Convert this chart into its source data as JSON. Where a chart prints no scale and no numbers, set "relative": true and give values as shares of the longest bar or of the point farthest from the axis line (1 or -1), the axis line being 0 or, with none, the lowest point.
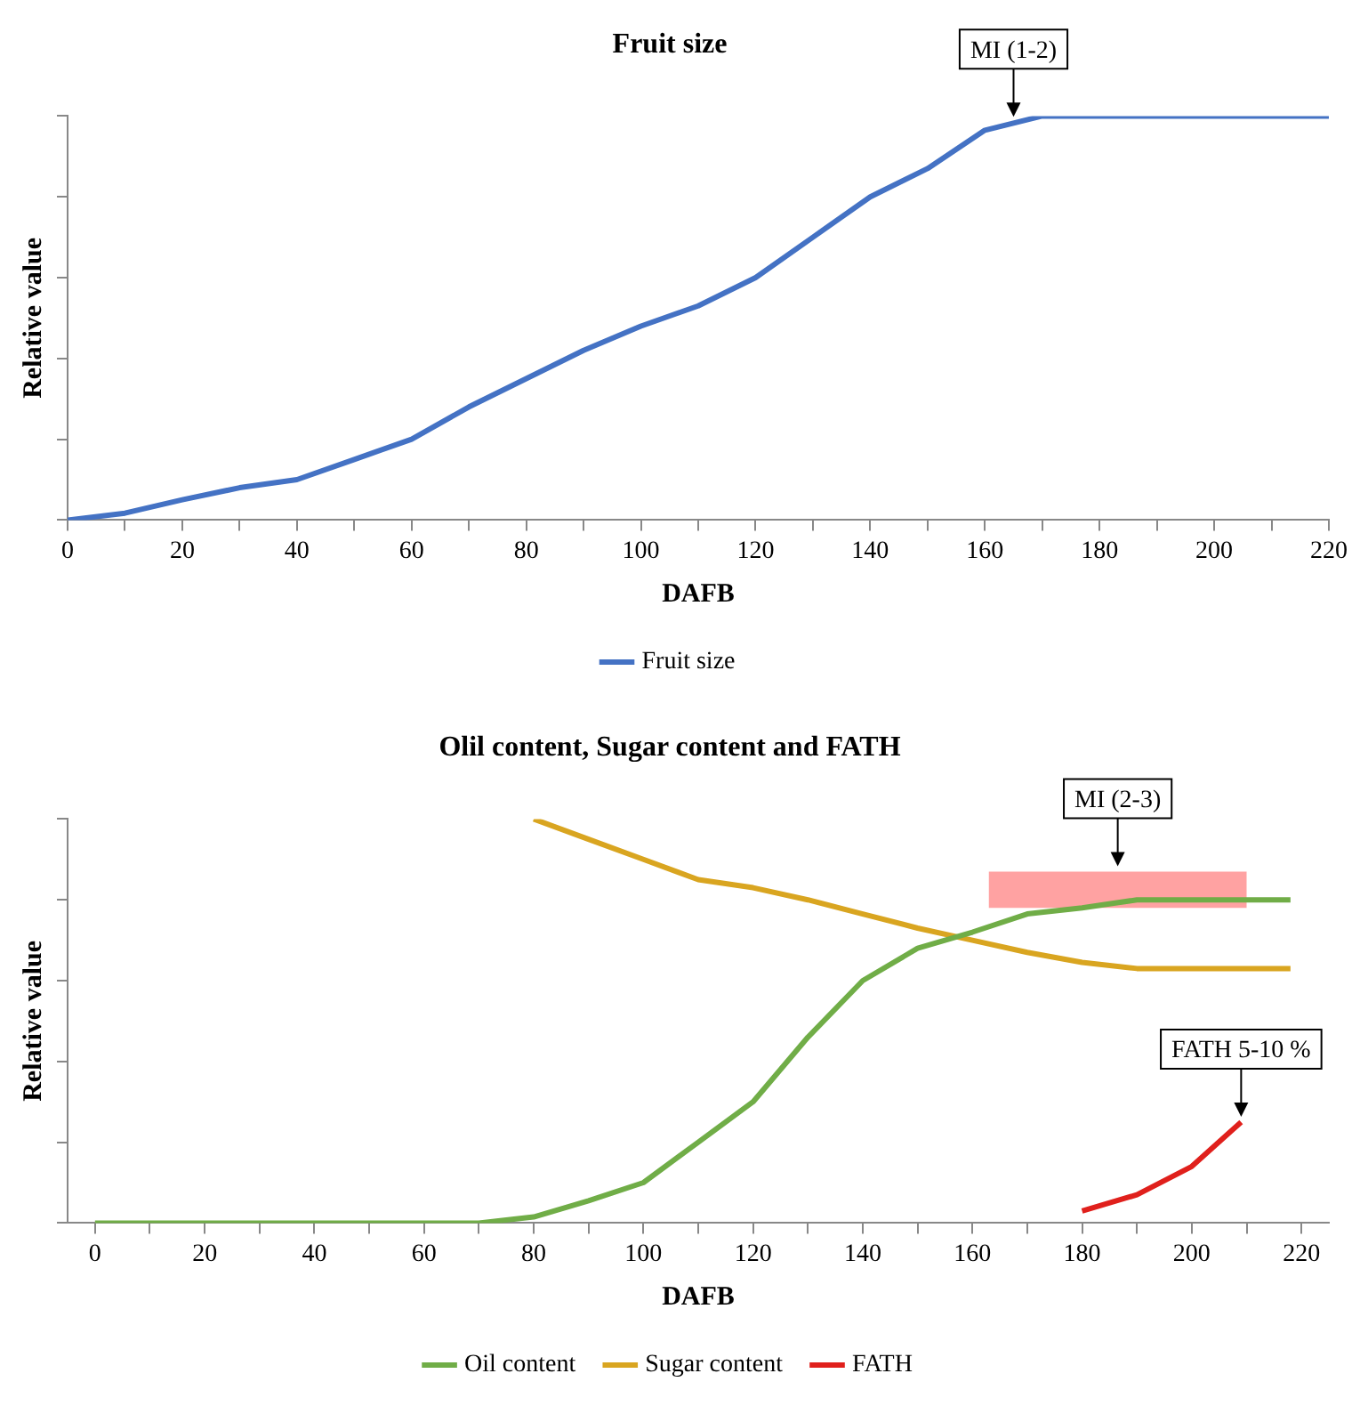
{
  "chart_data": [
    {
      "type": "line",
      "title": "Fruit size",
      "xlabel": "DAFB",
      "ylabel": "Relative value",
      "relative": true,
      "legend": "bottom",
      "grid": false,
      "marker": "none",
      "line_style": "solid",
      "xlim": [
        0,
        220
      ],
      "xticks": [
        0,
        {
          "value": 10,
          "label": null
        },
        20,
        {
          "value": 30,
          "label": null
        },
        40,
        {
          "value": 50,
          "label": null
        },
        60,
        {
          "value": 70,
          "label": null
        },
        80,
        {
          "value": 90,
          "label": null
        },
        100,
        {
          "value": 110,
          "label": null
        },
        120,
        {
          "value": 130,
          "label": null
        },
        140,
        {
          "value": 150,
          "label": null
        },
        160,
        {
          "value": 170,
          "label": null
        },
        180,
        {
          "value": 190,
          "label": null
        },
        200,
        {
          "value": 210,
          "label": null
        },
        220
      ],
      "series": [
        {
          "name": "Fruit size",
          "color": "#4472c4",
          "x": [
            0,
            10,
            20,
            30,
            40,
            50,
            60,
            70,
            80,
            90,
            100,
            110,
            120,
            130,
            140,
            150,
            160,
            170,
            180,
            190,
            200,
            210,
            220
          ],
          "values": [
            0,
            0.017,
            0.05,
            0.08,
            0.1,
            0.15,
            0.2,
            0.28,
            0.35,
            0.42,
            0.48,
            0.53,
            0.6,
            0.7,
            0.8,
            0.87,
            0.965,
            1,
            1,
            1,
            1,
            1,
            1
          ]
        }
      ],
      "annotations": [
        {
          "text": "MI (1-2)",
          "x": 165,
          "y": 0.985
        }
      ]
    },
    {
      "type": "line",
      "title": "Olil content, Sugar content and FATH",
      "xlabel": "DAFB",
      "ylabel": "Relative value",
      "relative": true,
      "legend": "bottom",
      "grid": false,
      "marker": "none",
      "line_style": "solid",
      "xlim": [
        -5,
        225
      ],
      "xticks": [
        0,
        {
          "value": 10,
          "label": null
        },
        20,
        {
          "value": 30,
          "label": null
        },
        40,
        {
          "value": 50,
          "label": null
        },
        60,
        {
          "value": 70,
          "label": null
        },
        80,
        {
          "value": 90,
          "label": null
        },
        100,
        {
          "value": 110,
          "label": null
        },
        120,
        {
          "value": 130,
          "label": null
        },
        140,
        {
          "value": 150,
          "label": null
        },
        160,
        {
          "value": 170,
          "label": null
        },
        180,
        {
          "value": 190,
          "label": null
        },
        200,
        {
          "value": 210,
          "label": null
        },
        220
      ],
      "series": [
        {
          "name": "Oil content",
          "color": "#70ad47",
          "x": [
            0,
            10,
            20,
            30,
            40,
            50,
            60,
            70,
            80,
            90,
            100,
            110,
            120,
            130,
            140,
            150,
            160,
            170,
            180,
            190,
            200,
            210,
            218
          ],
          "values": [
            0,
            0,
            0,
            0,
            0,
            0,
            0,
            0,
            0.015,
            0.055,
            0.1,
            0.2,
            0.3,
            0.46,
            0.6,
            0.68,
            0.72,
            0.765,
            0.78,
            0.8,
            0.8,
            0.8,
            0.8
          ]
        },
        {
          "name": "Sugar content",
          "color": "#d9a520",
          "x": [
            80,
            90,
            100,
            110,
            120,
            130,
            140,
            150,
            160,
            170,
            180,
            190,
            200,
            210,
            218
          ],
          "values": [
            1,
            0.95,
            0.9,
            0.85,
            0.83,
            0.8,
            0.765,
            0.73,
            0.7,
            0.67,
            0.645,
            0.63,
            0.63,
            0.63,
            0.63
          ]
        },
        {
          "name": "FATH",
          "color": "#e0201c",
          "x": [
            180,
            190,
            200,
            209
          ],
          "values": [
            0.03,
            0.07,
            0.14,
            0.25
          ]
        }
      ],
      "bands": [
        {
          "axis": "x",
          "from": 163,
          "to": 210,
          "color": "#ff3030",
          "label": "MI (2-3)"
        }
      ],
      "annotations": [
        {
          "text": "FATH 5-10 %",
          "x": 209,
          "y": 0.25
        }
      ]
    }
  ]
}
